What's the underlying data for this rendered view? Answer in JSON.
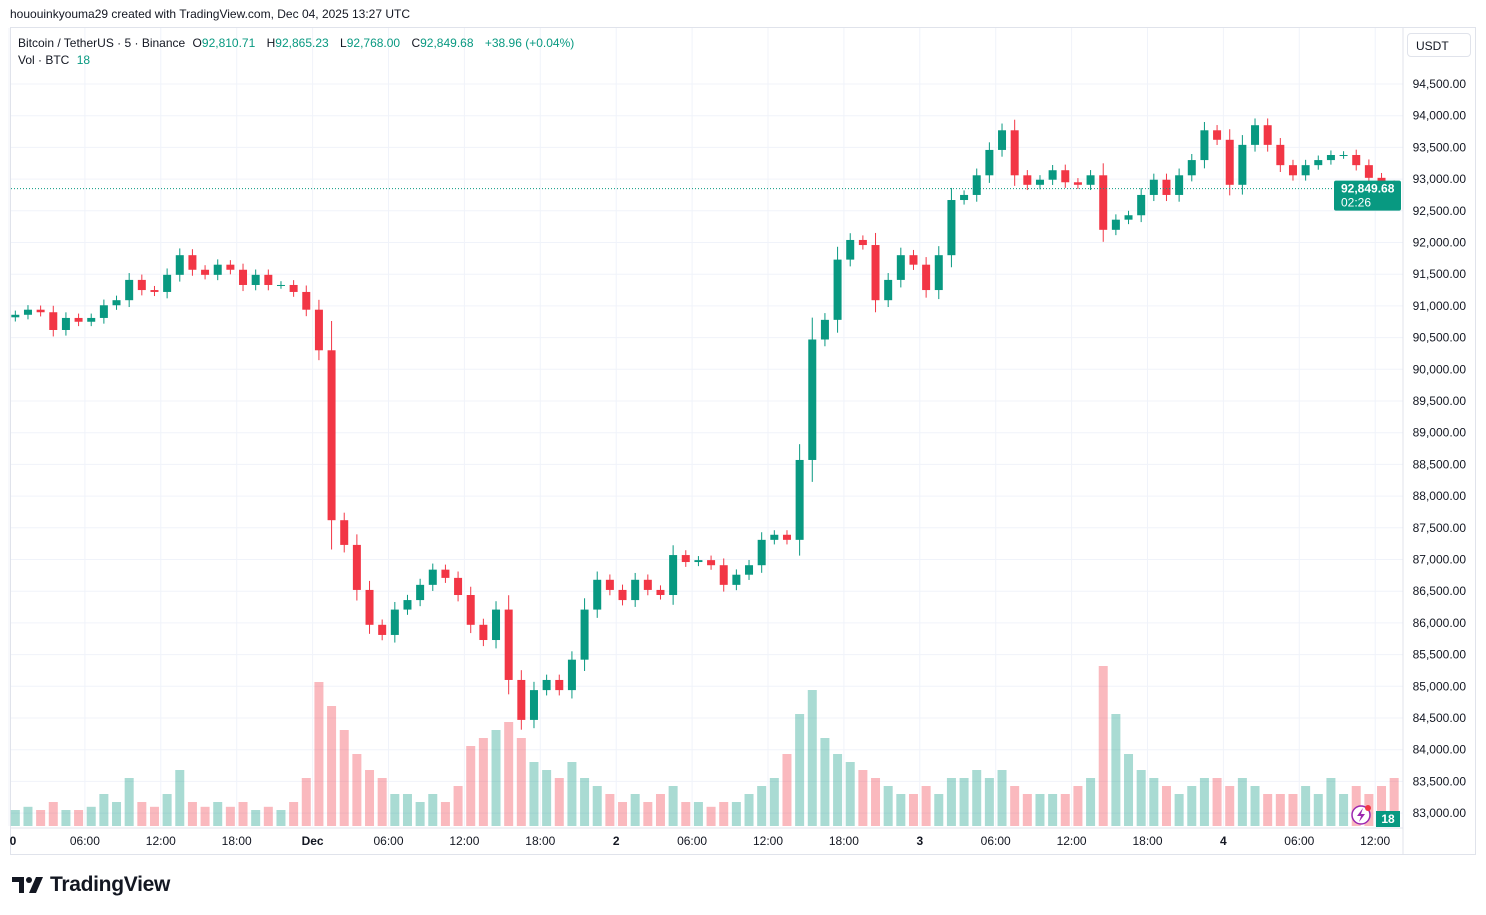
{
  "credit": "hououinkyouma29 created with TradingView.com, Dec 04, 2025 13:27 UTC",
  "legend": {
    "symbol": "Bitcoin / TetherUS · 5 · Binance",
    "open_label": "O",
    "open": "92,810.71",
    "high_label": "H",
    "high": "92,865.23",
    "low_label": "L",
    "low": "92,768.00",
    "close_label": "C",
    "close": "92,849.68",
    "change": "+38.96 (+0.04%)",
    "vol_label": "Vol · BTC",
    "vol_value": "18"
  },
  "currency_button": "USDT",
  "last_price_label": "92,849.68",
  "countdown": "02:26",
  "volume_badge": "18",
  "logo_text": "TradingView",
  "colors": {
    "up": "#089981",
    "down": "#f23645",
    "grid": "#f0f3fa",
    "accent": "#089981"
  },
  "icons": {
    "lightning": "lightning-icon",
    "logo": "tradingview-logo-icon"
  },
  "chart_data": {
    "type": "candlestick",
    "title": "",
    "x_tick_labels": [
      "0",
      "06:00",
      "12:00",
      "18:00",
      "Dec",
      "06:00",
      "12:00",
      "18:00",
      "2",
      "06:00",
      "12:00",
      "18:00",
      "3",
      "06:00",
      "12:00",
      "18:00",
      "4",
      "06:00",
      "12:00"
    ],
    "x_tick_hours": [
      0,
      6,
      12,
      18,
      24,
      30,
      36,
      42,
      48,
      54,
      60,
      66,
      72,
      78,
      84,
      90,
      96,
      102,
      108
    ],
    "y_ticks": [
      94500,
      94000,
      93500,
      93000,
      92500,
      92000,
      91500,
      91000,
      90500,
      90000,
      89500,
      89000,
      88500,
      88000,
      87500,
      87000,
      86500,
      86000,
      85500,
      85000,
      84500,
      84000,
      83500,
      83000
    ],
    "y_tick_labels": [
      "94,500.00",
      "94,000.00",
      "93,500.00",
      "93,000.00",
      "92,500.00",
      "92,000.00",
      "91,500.00",
      "91,000.00",
      "90,500.00",
      "90,000.00",
      "89,500.00",
      "89,000.00",
      "88,500.00",
      "88,000.00",
      "87,500.00",
      "87,000.00",
      "86,500.00",
      "86,000.00",
      "85,500.00",
      "85,000.00",
      "84,500.00",
      "84,000.00",
      "83,500.00",
      "83,000.00"
    ],
    "ylim": [
      82750,
      95300
    ],
    "last_price": 92849.68,
    "grid": true,
    "hourly_close": [
      90860,
      90940,
      90900,
      90620,
      90810,
      90750,
      90810,
      91010,
      91090,
      91410,
      91250,
      91220,
      91490,
      91800,
      91570,
      91490,
      91650,
      91570,
      91330,
      91490,
      91330,
      91330,
      91220,
      90940,
      90300,
      87620,
      87230,
      86520,
      85970,
      85810,
      86210,
      86360,
      86600,
      86840,
      86710,
      86440,
      85970,
      85730,
      86210,
      85100,
      84470,
      84940,
      85100,
      84940,
      85420,
      86210,
      86680,
      86520,
      86360,
      86680,
      86520,
      86440,
      87070,
      86960,
      86990,
      86910,
      86600,
      86760,
      86910,
      87310,
      87390,
      87310,
      88570,
      90470,
      90780,
      91730,
      92040,
      91960,
      91090,
      91410,
      91800,
      91650,
      91250,
      91800,
      92670,
      92750,
      93060,
      93460,
      93770,
      93060,
      92910,
      92990,
      93140,
      92950,
      92910,
      93060,
      92200,
      92360,
      92430,
      92750,
      92990,
      92750,
      93060,
      93300,
      93770,
      93620,
      92910,
      93540,
      93850,
      93540,
      93220,
      93060,
      93220,
      93300,
      93380,
      93380,
      93220,
      93020,
      92910,
      92850
    ],
    "volume_relative": [
      0.1,
      0.12,
      0.1,
      0.15,
      0.1,
      0.1,
      0.12,
      0.2,
      0.15,
      0.3,
      0.15,
      0.12,
      0.2,
      0.35,
      0.15,
      0.12,
      0.15,
      0.12,
      0.15,
      0.1,
      0.12,
      0.1,
      0.15,
      0.3,
      0.9,
      0.75,
      0.6,
      0.45,
      0.35,
      0.3,
      0.2,
      0.2,
      0.15,
      0.2,
      0.15,
      0.25,
      0.5,
      0.55,
      0.6,
      0.65,
      0.55,
      0.4,
      0.35,
      0.3,
      0.4,
      0.3,
      0.25,
      0.2,
      0.15,
      0.2,
      0.15,
      0.2,
      0.25,
      0.15,
      0.15,
      0.12,
      0.15,
      0.15,
      0.2,
      0.25,
      0.3,
      0.45,
      0.7,
      0.85,
      0.55,
      0.45,
      0.4,
      0.35,
      0.3,
      0.25,
      0.2,
      0.2,
      0.25,
      0.2,
      0.3,
      0.3,
      0.35,
      0.3,
      0.35,
      0.25,
      0.2,
      0.2,
      0.2,
      0.2,
      0.25,
      0.3,
      1.0,
      0.7,
      0.45,
      0.35,
      0.3,
      0.25,
      0.2,
      0.25,
      0.3,
      0.3,
      0.25,
      0.3,
      0.25,
      0.2,
      0.2,
      0.2,
      0.25,
      0.2,
      0.3,
      0.2,
      0.25,
      0.2,
      0.25,
      0.3
    ]
  }
}
